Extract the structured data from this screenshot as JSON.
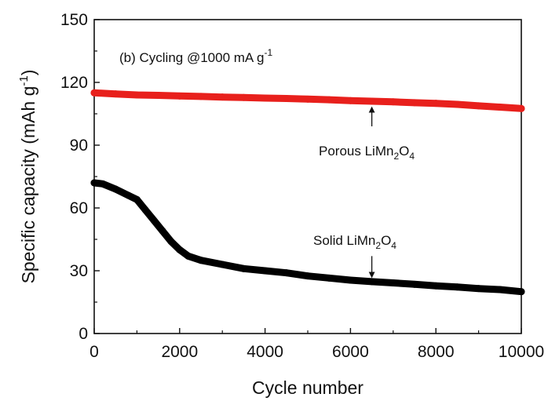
{
  "chart_data": {
    "type": "line",
    "panel_label": "(b) Cycling @1000 mA g",
    "panel_label_sup": "-1",
    "xlabel": "Cycle number",
    "ylabel": "Specific capacity (mAh g",
    "ylabel_sup": "-1",
    "ylabel_close": ")",
    "xlim": [
      0,
      10000
    ],
    "ylim": [
      0,
      150
    ],
    "xticks": [
      "0",
      "2000",
      "4000",
      "6000",
      "8000",
      "10000"
    ],
    "yticks": [
      "0",
      "30",
      "60",
      "90",
      "120",
      "150"
    ],
    "grid": false,
    "series": [
      {
        "color": "#e8201c",
        "points": [
          [
            0,
            115
          ],
          [
            500,
            114.5
          ],
          [
            1000,
            114
          ],
          [
            1500,
            113.8
          ],
          [
            2000,
            113.5
          ],
          [
            2500,
            113.3
          ],
          [
            3000,
            113
          ],
          [
            3500,
            112.8
          ],
          [
            4000,
            112.5
          ],
          [
            4500,
            112.3
          ],
          [
            5000,
            112
          ],
          [
            5500,
            111.7
          ],
          [
            6000,
            111.3
          ],
          [
            6500,
            111
          ],
          [
            7000,
            110.7
          ],
          [
            7500,
            110.3
          ],
          [
            8000,
            110
          ],
          [
            8500,
            109.5
          ],
          [
            9000,
            108.8
          ],
          [
            9500,
            108.2
          ],
          [
            10000,
            107.5
          ]
        ]
      },
      {
        "color": "#000000",
        "points": [
          [
            0,
            72
          ],
          [
            200,
            71.5
          ],
          [
            500,
            69
          ],
          [
            800,
            66
          ],
          [
            1000,
            64
          ],
          [
            1200,
            59
          ],
          [
            1400,
            54
          ],
          [
            1600,
            49
          ],
          [
            1800,
            44
          ],
          [
            2000,
            40
          ],
          [
            2200,
            37
          ],
          [
            2500,
            35
          ],
          [
            3000,
            33
          ],
          [
            3500,
            31
          ],
          [
            4000,
            30
          ],
          [
            4500,
            29
          ],
          [
            5000,
            27.5
          ],
          [
            5500,
            26.5
          ],
          [
            6000,
            25.5
          ],
          [
            6500,
            24.8
          ],
          [
            7000,
            24.2
          ],
          [
            7500,
            23.5
          ],
          [
            8000,
            22.8
          ],
          [
            8500,
            22.2
          ],
          [
            9000,
            21.5
          ],
          [
            9500,
            21
          ],
          [
            10000,
            20
          ]
        ]
      }
    ],
    "annotations": [
      {
        "name": "porous",
        "text_main": "Porous LiMn",
        "sub1": "2",
        "text_mid": "O",
        "sub2": "4",
        "arrow_from": [
          6500,
          99
        ],
        "arrow_to": [
          6500,
          107
        ]
      },
      {
        "name": "solid",
        "text_main": "Solid LiMn",
        "sub1": "2",
        "text_mid": "O",
        "sub2": "4",
        "arrow_from": [
          6500,
          37
        ],
        "arrow_to": [
          6500,
          28
        ]
      }
    ]
  }
}
